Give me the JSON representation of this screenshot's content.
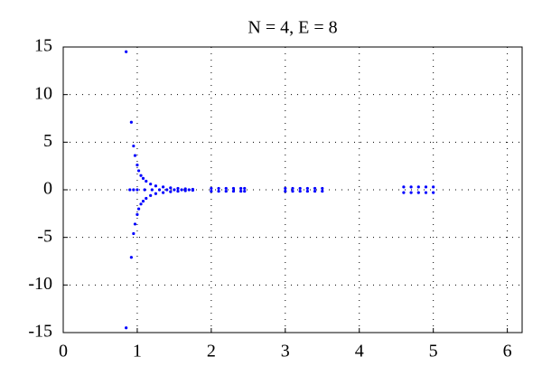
{
  "chart_data": {
    "type": "scatter",
    "title": "N = 4, E = 8",
    "color": "#0000ff",
    "grid": true,
    "xlim": [
      0,
      6.2
    ],
    "ylim": [
      -15,
      15
    ],
    "xticks": [
      0,
      1,
      2,
      3,
      4,
      5,
      6
    ],
    "yticks": [
      -15,
      -10,
      -5,
      0,
      5,
      10,
      15
    ],
    "x": [
      0.85,
      0.92,
      0.95,
      0.97,
      1.0,
      1.02,
      1.05,
      1.08,
      1.12,
      1.18,
      1.25,
      1.35,
      1.45,
      1.55,
      1.65,
      1.75,
      0.85,
      0.92,
      0.95,
      0.97,
      1.0,
      1.02,
      1.05,
      1.08,
      1.12,
      1.18,
      1.25,
      1.35,
      1.45,
      1.55,
      1.65,
      1.75,
      0.9,
      0.95,
      1.0,
      1.1,
      1.2,
      1.3,
      1.4,
      1.5,
      1.6,
      1.7,
      2.0,
      2.1,
      2.2,
      2.3,
      2.4,
      2.45,
      2.0,
      2.1,
      2.2,
      2.3,
      2.4,
      2.45,
      3.0,
      3.1,
      3.2,
      3.3,
      3.4,
      3.5,
      3.0,
      3.1,
      3.2,
      3.3,
      3.4,
      3.5,
      4.6,
      4.7,
      4.8,
      4.9,
      5.0,
      4.6,
      4.7,
      4.8,
      4.9,
      5.0
    ],
    "y": [
      14.5,
      7.1,
      4.6,
      3.6,
      2.6,
      2.0,
      1.5,
      1.2,
      0.9,
      0.6,
      0.4,
      0.3,
      0.2,
      0.15,
      0.1,
      0.05,
      -14.5,
      -7.1,
      -4.6,
      -3.6,
      -2.6,
      -2.0,
      -1.5,
      -1.2,
      -0.9,
      -0.6,
      -0.4,
      -0.3,
      -0.2,
      -0.15,
      -0.1,
      -0.05,
      0,
      0,
      0,
      0,
      0,
      0,
      0,
      0,
      0,
      0,
      0.15,
      0.15,
      0.15,
      0.15,
      0.15,
      0.15,
      -0.15,
      -0.15,
      -0.15,
      -0.15,
      -0.15,
      -0.15,
      0.15,
      0.15,
      0.15,
      0.15,
      0.15,
      0.15,
      -0.15,
      -0.15,
      -0.15,
      -0.15,
      -0.15,
      -0.15,
      0.3,
      0.3,
      0.3,
      0.3,
      0.3,
      -0.3,
      -0.3,
      -0.3,
      -0.3,
      -0.3
    ]
  }
}
